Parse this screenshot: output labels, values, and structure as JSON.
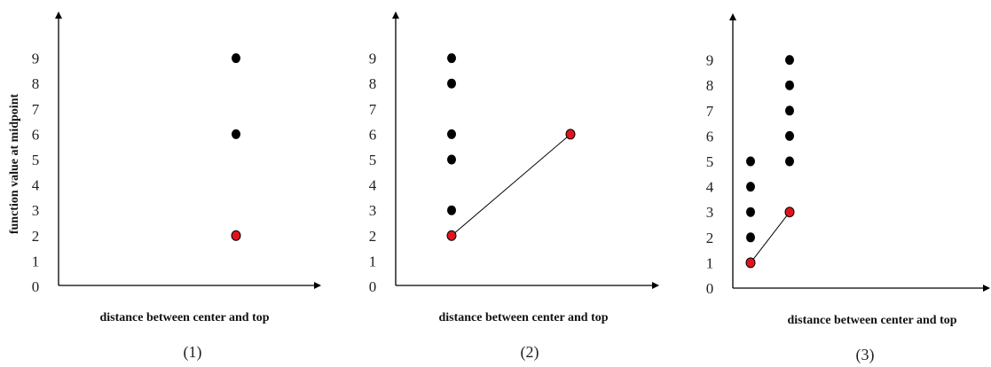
{
  "y_axis_label": "function value at midpoint",
  "x_axis_label": "distance between center and top",
  "colors": {
    "axis": "#000000",
    "black_point": "#000000",
    "red_point": "#e0141e",
    "connector": "#000000"
  },
  "panels": [
    {
      "caption": "(1)",
      "y_ticks": [
        "0",
        "1",
        "2",
        "3",
        "4",
        "5",
        "6",
        "7",
        "8",
        "9"
      ],
      "columns": [
        {
          "black": [
            6,
            9
          ],
          "red": 2
        }
      ],
      "connector": []
    },
    {
      "caption": "(2)",
      "y_ticks": [
        "0",
        "1",
        "2",
        "3",
        "4",
        "5",
        "6",
        "7",
        "8",
        "9"
      ],
      "columns": [
        {
          "black": [
            3,
            5,
            6,
            8,
            9
          ],
          "red": 2
        },
        {
          "black": [],
          "red": 6
        }
      ],
      "connector": [
        2,
        6
      ]
    },
    {
      "caption": "(3)",
      "y_ticks": [
        "0",
        "1",
        "2",
        "3",
        "4",
        "5",
        "6",
        "7",
        "8",
        "9"
      ],
      "columns": [
        {
          "black": [
            2,
            3,
            4,
            5
          ],
          "red": 1
        },
        {
          "black": [
            5,
            6,
            7,
            8,
            9
          ],
          "red": 3
        }
      ],
      "connector": [
        1,
        3
      ]
    }
  ]
}
